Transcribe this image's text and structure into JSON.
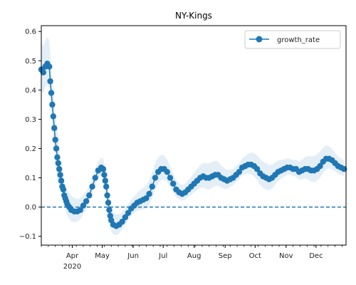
{
  "chart_data": {
    "type": "line",
    "title": "NY-Kings",
    "xlabel": "",
    "ylabel": "",
    "x_range": [
      "2020-03-01",
      "2020-12-31"
    ],
    "ylim": [
      -0.13,
      0.62
    ],
    "yticks": [
      -0.1,
      0.0,
      0.1,
      0.2,
      0.3,
      0.4,
      0.5,
      0.6
    ],
    "ytick_labels": [
      "−0.1",
      "0.0",
      "0.1",
      "0.2",
      "0.3",
      "0.4",
      "0.5",
      "0.6"
    ],
    "xticks": [
      "2020-04-01",
      "2020-05-01",
      "2020-06-01",
      "2020-07-01",
      "2020-08-01",
      "2020-09-01",
      "2020-10-01",
      "2020-11-01",
      "2020-12-01"
    ],
    "xtick_labels": [
      "Apr",
      "May",
      "Jun",
      "Jul",
      "Aug",
      "Sep",
      "Oct",
      "Nov",
      "Dec"
    ],
    "x_year_label": "2020",
    "legend": {
      "position": "top-right",
      "entries": [
        "growth_rate"
      ]
    },
    "reference_line": {
      "y": 0.0,
      "style": "dashed"
    },
    "series": [
      {
        "name": "growth_rate",
        "color": "#1f77b4",
        "band_color": "#1f77b4",
        "points": [
          [
            "2020-03-01",
            0.47
          ],
          [
            "2020-03-03",
            0.46
          ],
          [
            "2020-03-05",
            0.48
          ],
          [
            "2020-03-07",
            0.49
          ],
          [
            "2020-03-09",
            0.48
          ],
          [
            "2020-03-10",
            0.43
          ],
          [
            "2020-03-11",
            0.39
          ],
          [
            "2020-03-12",
            0.35
          ],
          [
            "2020-03-13",
            0.31
          ],
          [
            "2020-03-14",
            0.27
          ],
          [
            "2020-03-15",
            0.23
          ],
          [
            "2020-03-16",
            0.2
          ],
          [
            "2020-03-17",
            0.17
          ],
          [
            "2020-03-18",
            0.15
          ],
          [
            "2020-03-19",
            0.13
          ],
          [
            "2020-03-20",
            0.11
          ],
          [
            "2020-03-21",
            0.09
          ],
          [
            "2020-03-22",
            0.07
          ],
          [
            "2020-03-23",
            0.06
          ],
          [
            "2020-03-24",
            0.04
          ],
          [
            "2020-03-25",
            0.03
          ],
          [
            "2020-03-26",
            0.02
          ],
          [
            "2020-03-27",
            0.01
          ],
          [
            "2020-03-29",
            0.0
          ],
          [
            "2020-03-31",
            -0.01
          ],
          [
            "2020-04-03",
            -0.015
          ],
          [
            "2020-04-06",
            -0.015
          ],
          [
            "2020-04-09",
            -0.01
          ],
          [
            "2020-04-12",
            0.005
          ],
          [
            "2020-04-15",
            0.02
          ],
          [
            "2020-04-18",
            0.04
          ],
          [
            "2020-04-21",
            0.07
          ],
          [
            "2020-04-24",
            0.1
          ],
          [
            "2020-04-27",
            0.125
          ],
          [
            "2020-04-30",
            0.135
          ],
          [
            "2020-05-02",
            0.13
          ],
          [
            "2020-05-03",
            0.11
          ],
          [
            "2020-05-04",
            0.09
          ],
          [
            "2020-05-05",
            0.07
          ],
          [
            "2020-05-06",
            0.04
          ],
          [
            "2020-05-07",
            0.015
          ],
          [
            "2020-05-08",
            -0.01
          ],
          [
            "2020-05-09",
            -0.03
          ],
          [
            "2020-05-10",
            -0.045
          ],
          [
            "2020-05-12",
            -0.06
          ],
          [
            "2020-05-15",
            -0.065
          ],
          [
            "2020-05-18",
            -0.06
          ],
          [
            "2020-05-21",
            -0.05
          ],
          [
            "2020-05-24",
            -0.035
          ],
          [
            "2020-05-27",
            -0.02
          ],
          [
            "2020-05-30",
            -0.005
          ],
          [
            "2020-06-02",
            0.005
          ],
          [
            "2020-06-05",
            0.015
          ],
          [
            "2020-06-08",
            0.02
          ],
          [
            "2020-06-11",
            0.025
          ],
          [
            "2020-06-14",
            0.03
          ],
          [
            "2020-06-17",
            0.045
          ],
          [
            "2020-06-20",
            0.07
          ],
          [
            "2020-06-23",
            0.1
          ],
          [
            "2020-06-26",
            0.12
          ],
          [
            "2020-06-29",
            0.13
          ],
          [
            "2020-07-02",
            0.13
          ],
          [
            "2020-07-05",
            0.12
          ],
          [
            "2020-07-08",
            0.1
          ],
          [
            "2020-07-11",
            0.08
          ],
          [
            "2020-07-14",
            0.06
          ],
          [
            "2020-07-17",
            0.05
          ],
          [
            "2020-07-20",
            0.045
          ],
          [
            "2020-07-23",
            0.05
          ],
          [
            "2020-07-26",
            0.06
          ],
          [
            "2020-07-29",
            0.07
          ],
          [
            "2020-08-01",
            0.08
          ],
          [
            "2020-08-04",
            0.09
          ],
          [
            "2020-08-07",
            0.1
          ],
          [
            "2020-08-10",
            0.105
          ],
          [
            "2020-08-13",
            0.1
          ],
          [
            "2020-08-16",
            0.1
          ],
          [
            "2020-08-19",
            0.105
          ],
          [
            "2020-08-22",
            0.11
          ],
          [
            "2020-08-25",
            0.11
          ],
          [
            "2020-08-28",
            0.1
          ],
          [
            "2020-08-31",
            0.095
          ],
          [
            "2020-09-03",
            0.09
          ],
          [
            "2020-09-06",
            0.095
          ],
          [
            "2020-09-09",
            0.1
          ],
          [
            "2020-09-12",
            0.11
          ],
          [
            "2020-09-15",
            0.12
          ],
          [
            "2020-09-18",
            0.135
          ],
          [
            "2020-09-21",
            0.14
          ],
          [
            "2020-09-24",
            0.145
          ],
          [
            "2020-09-27",
            0.145
          ],
          [
            "2020-09-30",
            0.14
          ],
          [
            "2020-10-03",
            0.13
          ],
          [
            "2020-10-06",
            0.115
          ],
          [
            "2020-10-09",
            0.105
          ],
          [
            "2020-10-12",
            0.1
          ],
          [
            "2020-10-15",
            0.095
          ],
          [
            "2020-10-18",
            0.1
          ],
          [
            "2020-10-21",
            0.11
          ],
          [
            "2020-10-24",
            0.12
          ],
          [
            "2020-10-27",
            0.125
          ],
          [
            "2020-10-30",
            0.13
          ],
          [
            "2020-11-02",
            0.135
          ],
          [
            "2020-11-05",
            0.135
          ],
          [
            "2020-11-08",
            0.13
          ],
          [
            "2020-11-11",
            0.13
          ],
          [
            "2020-11-14",
            0.12
          ],
          [
            "2020-11-17",
            0.125
          ],
          [
            "2020-11-20",
            0.13
          ],
          [
            "2020-11-23",
            0.13
          ],
          [
            "2020-11-26",
            0.125
          ],
          [
            "2020-11-29",
            0.125
          ],
          [
            "2020-12-02",
            0.13
          ],
          [
            "2020-12-05",
            0.14
          ],
          [
            "2020-12-08",
            0.155
          ],
          [
            "2020-12-11",
            0.165
          ],
          [
            "2020-12-14",
            0.165
          ],
          [
            "2020-12-17",
            0.16
          ],
          [
            "2020-12-20",
            0.15
          ],
          [
            "2020-12-23",
            0.14
          ],
          [
            "2020-12-26",
            0.135
          ],
          [
            "2020-12-29",
            0.13
          ]
        ]
      }
    ]
  }
}
